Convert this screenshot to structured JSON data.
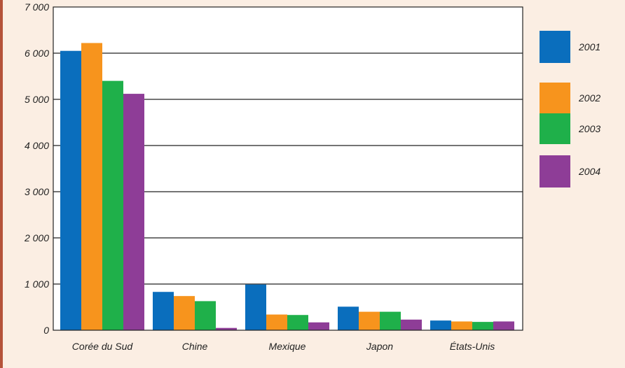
{
  "chart_data": {
    "type": "bar",
    "title": "",
    "xlabel": "",
    "ylabel": "",
    "categories": [
      "Corée du Sud",
      "Chine",
      "Mexique",
      "Japon",
      "États-Unis"
    ],
    "series": [
      {
        "name": "2001",
        "color": "#0a6ebd",
        "values": [
          6050,
          830,
          990,
          510,
          210
        ]
      },
      {
        "name": "2002",
        "color": "#f7941d",
        "values": [
          6220,
          740,
          340,
          400,
          190
        ]
      },
      {
        "name": "2003",
        "color": "#1fb04a",
        "values": [
          5400,
          630,
          330,
          400,
          180
        ]
      },
      {
        "name": "2004",
        "color": "#8e3d97",
        "values": [
          5120,
          50,
          170,
          230,
          190
        ]
      }
    ],
    "ylim": [
      0,
      7000
    ],
    "yticks": [
      0,
      1000,
      2000,
      3000,
      4000,
      5000,
      6000,
      7000
    ],
    "ytick_labels": [
      "0",
      "1 000",
      "2 000",
      "3 000",
      "4 000",
      "5 000",
      "6 000",
      "7 000"
    ],
    "grid": true,
    "legend_position": "right"
  },
  "colors": {
    "background": "#fbeee3",
    "plot_background": "#ffffff",
    "border_accent": "#b5533a"
  }
}
